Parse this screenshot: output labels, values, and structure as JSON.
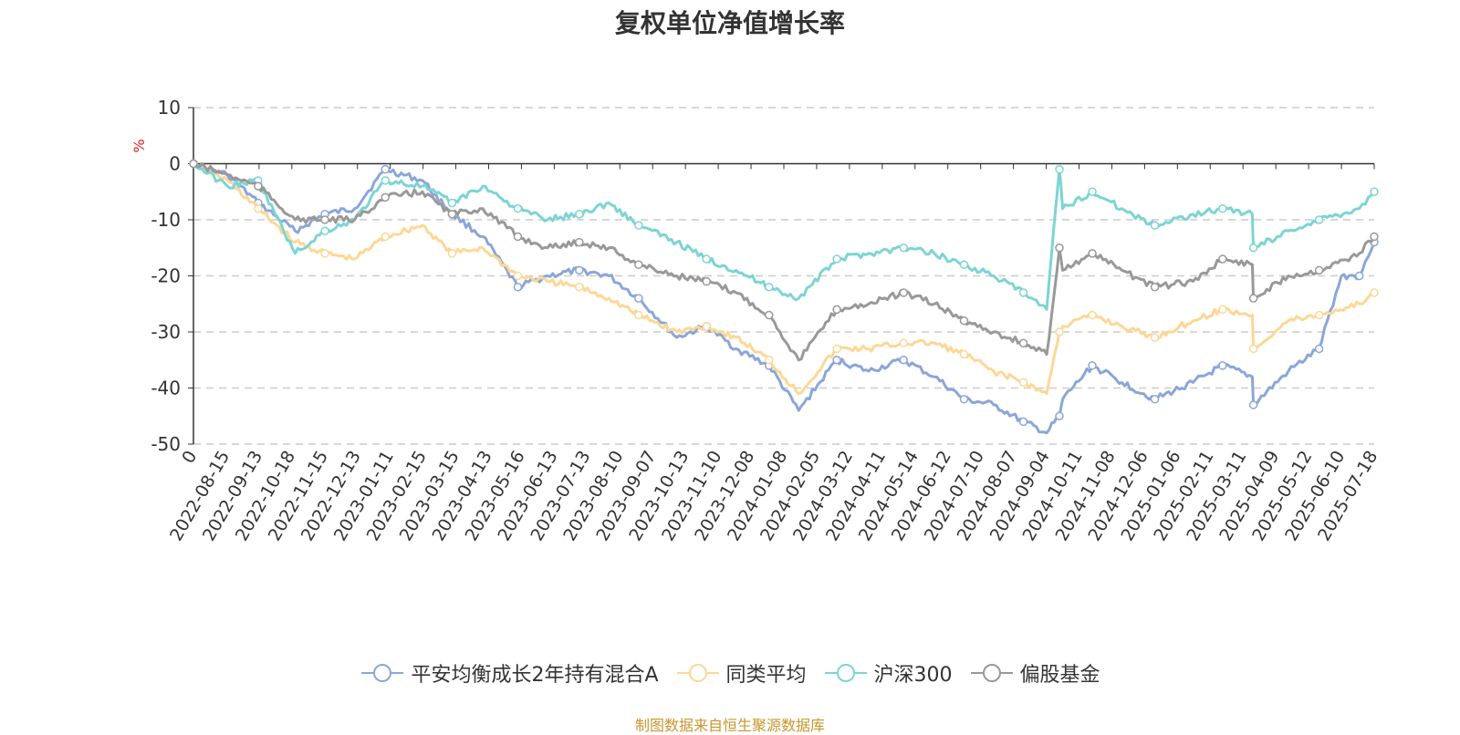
{
  "title": "复权单位净值增长率",
  "source_note": "制图数据来自恒生聚源数据库",
  "chart_data": {
    "type": "line",
    "ylabel": "%",
    "ylim": [
      -50,
      10
    ],
    "yticks": [
      10,
      0,
      -10,
      -20,
      -30,
      -40,
      -50
    ],
    "xlim": [
      "2022-07-14",
      "2025-08-01"
    ],
    "x_first_label": "0",
    "x_tick_labels": [
      "2022-08-15",
      "2022-09-13",
      "2022-10-18",
      "2022-11-15",
      "2022-12-13",
      "2023-01-11",
      "2023-02-15",
      "2023-03-15",
      "2023-04-13",
      "2023-05-16",
      "2023-06-13",
      "2023-07-13",
      "2023-08-10",
      "2023-09-07",
      "2023-10-13",
      "2023-11-10",
      "2023-12-08",
      "2024-01-08",
      "2024-02-05",
      "2024-03-12",
      "2024-04-11",
      "2024-05-14",
      "2024-06-12",
      "2024-07-10",
      "2024-08-07",
      "2024-09-04",
      "2024-10-11",
      "2024-11-08",
      "2024-12-06",
      "2025-01-06",
      "2025-02-11",
      "2025-03-11",
      "2025-04-09",
      "2025-05-12",
      "2025-06-10",
      "2025-07-18"
    ],
    "grid": true,
    "legend_position": "bottom",
    "series": [
      {
        "name": "平安均衡成长2年持有混合A",
        "color": "#8ba6d8",
        "x": [
          "2022-07-14",
          "2022-08-15",
          "2022-09-13",
          "2022-10-18",
          "2022-11-15",
          "2022-12-13",
          "2023-01-11",
          "2023-02-15",
          "2023-03-15",
          "2023-04-13",
          "2023-05-16",
          "2023-06-13",
          "2023-07-13",
          "2023-08-10",
          "2023-09-07",
          "2023-10-13",
          "2023-11-10",
          "2023-12-08",
          "2024-01-08",
          "2024-02-05",
          "2024-03-12",
          "2024-04-11",
          "2024-05-14",
          "2024-06-12",
          "2024-07-10",
          "2024-08-07",
          "2024-09-04",
          "2024-09-26",
          "2024-10-08",
          "2024-10-11",
          "2024-11-08",
          "2024-12-06",
          "2025-01-06",
          "2025-02-11",
          "2025-03-11",
          "2025-04-08",
          "2025-04-09",
          "2025-05-12",
          "2025-06-10",
          "2025-07-01",
          "2025-07-18",
          "2025-08-01"
        ],
        "y": [
          0,
          -2,
          -7,
          -12,
          -9,
          -8,
          -1,
          -3,
          -9,
          -13,
          -22,
          -20,
          -19,
          -20,
          -24,
          -31,
          -29,
          -33,
          -36,
          -44,
          -35,
          -37,
          -35,
          -38,
          -42,
          -43,
          -46,
          -48,
          -45,
          -42,
          -36,
          -39,
          -42,
          -39,
          -36,
          -38,
          -43,
          -37,
          -33,
          -20,
          -20,
          -14
        ]
      },
      {
        "name": "同类平均",
        "color": "#fdd796",
        "x": [
          "2022-07-14",
          "2022-08-15",
          "2022-09-13",
          "2022-10-18",
          "2022-11-15",
          "2022-12-13",
          "2023-01-11",
          "2023-02-15",
          "2023-03-15",
          "2023-04-13",
          "2023-05-16",
          "2023-06-13",
          "2023-07-13",
          "2023-08-10",
          "2023-09-07",
          "2023-10-13",
          "2023-11-10",
          "2023-12-08",
          "2024-01-08",
          "2024-02-05",
          "2024-03-12",
          "2024-04-11",
          "2024-05-14",
          "2024-06-12",
          "2024-07-10",
          "2024-08-07",
          "2024-09-04",
          "2024-09-26",
          "2024-10-08",
          "2024-10-11",
          "2024-11-08",
          "2024-12-06",
          "2025-01-06",
          "2025-02-11",
          "2025-03-11",
          "2025-04-08",
          "2025-04-09",
          "2025-05-12",
          "2025-06-10",
          "2025-07-18",
          "2025-08-01"
        ],
        "y": [
          0,
          -3,
          -8,
          -14,
          -16,
          -17,
          -13,
          -11,
          -16,
          -15,
          -20,
          -21,
          -22,
          -24,
          -27,
          -30,
          -29,
          -31,
          -35,
          -41,
          -33,
          -33,
          -32,
          -32,
          -34,
          -37,
          -39,
          -41,
          -30,
          -29,
          -27,
          -29,
          -31,
          -28,
          -26,
          -27,
          -33,
          -28,
          -27,
          -25,
          -23
        ]
      },
      {
        "name": "沪深300",
        "color": "#7dd4d4",
        "x": [
          "2022-07-14",
          "2022-08-15",
          "2022-09-13",
          "2022-10-18",
          "2022-11-15",
          "2022-12-13",
          "2023-01-11",
          "2023-02-15",
          "2023-03-15",
          "2023-04-13",
          "2023-05-16",
          "2023-06-13",
          "2023-07-13",
          "2023-08-10",
          "2023-09-07",
          "2023-10-13",
          "2023-11-10",
          "2023-12-08",
          "2024-01-08",
          "2024-02-05",
          "2024-03-12",
          "2024-04-11",
          "2024-05-14",
          "2024-06-12",
          "2024-07-10",
          "2024-08-07",
          "2024-09-04",
          "2024-09-26",
          "2024-10-08",
          "2024-10-11",
          "2024-11-08",
          "2024-12-06",
          "2025-01-06",
          "2025-02-11",
          "2025-03-11",
          "2025-04-08",
          "2025-04-09",
          "2025-05-12",
          "2025-06-10",
          "2025-07-18",
          "2025-08-01"
        ],
        "y": [
          0,
          -4,
          -3,
          -16,
          -12,
          -10,
          -3,
          -4,
          -7,
          -4,
          -8,
          -10,
          -9,
          -7,
          -11,
          -14,
          -17,
          -19,
          -22,
          -24,
          -17,
          -16,
          -15,
          -16,
          -18,
          -20,
          -23,
          -26,
          -1,
          -8,
          -5,
          -8,
          -11,
          -9,
          -8,
          -9,
          -15,
          -12,
          -10,
          -8,
          -5
        ]
      },
      {
        "name": "偏股基金",
        "color": "#999999",
        "x": [
          "2022-07-14",
          "2022-08-15",
          "2022-09-13",
          "2022-10-18",
          "2022-11-15",
          "2022-12-13",
          "2023-01-11",
          "2023-02-15",
          "2023-03-15",
          "2023-04-13",
          "2023-05-16",
          "2023-06-13",
          "2023-07-13",
          "2023-08-10",
          "2023-09-07",
          "2023-10-13",
          "2023-11-10",
          "2023-12-08",
          "2024-01-08",
          "2024-02-05",
          "2024-03-12",
          "2024-04-11",
          "2024-05-14",
          "2024-06-12",
          "2024-07-10",
          "2024-08-07",
          "2024-09-04",
          "2024-09-26",
          "2024-10-08",
          "2024-10-11",
          "2024-11-08",
          "2024-12-06",
          "2025-01-06",
          "2025-02-11",
          "2025-03-11",
          "2025-04-08",
          "2025-04-09",
          "2025-05-12",
          "2025-06-10",
          "2025-07-18",
          "2025-08-01"
        ],
        "y": [
          0,
          -2,
          -4,
          -10,
          -10,
          -10,
          -6,
          -5,
          -9,
          -8,
          -13,
          -15,
          -14,
          -15,
          -18,
          -20,
          -21,
          -23,
          -27,
          -35,
          -26,
          -25,
          -23,
          -25,
          -28,
          -30,
          -32,
          -34,
          -15,
          -19,
          -16,
          -19,
          -22,
          -21,
          -17,
          -18,
          -24,
          -20,
          -19,
          -16,
          -13
        ]
      }
    ]
  }
}
